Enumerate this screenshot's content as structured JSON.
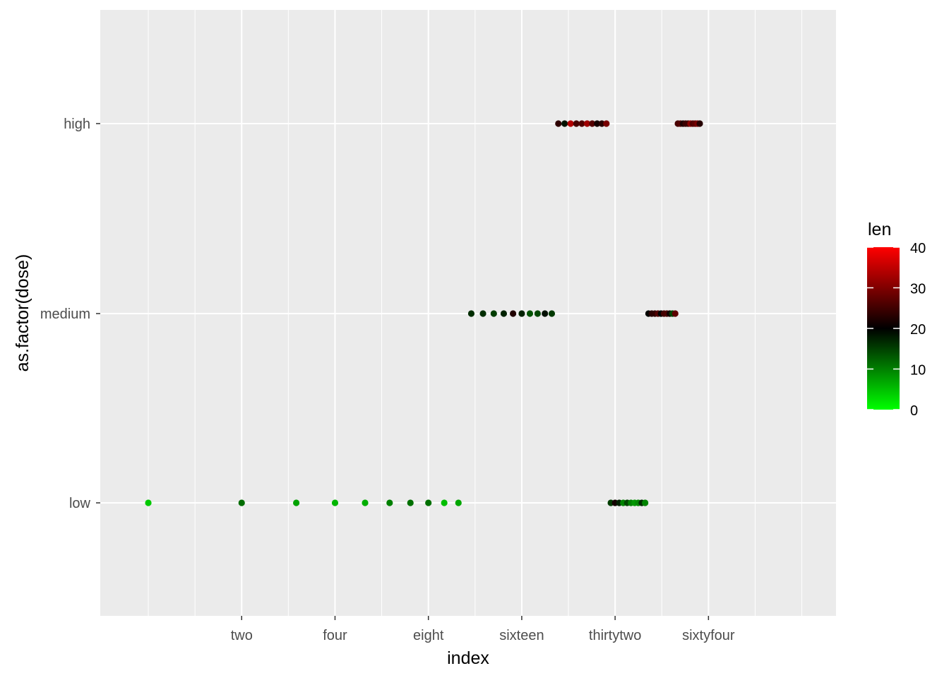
{
  "chart_data": {
    "type": "scatter",
    "xlabel": "index",
    "ylabel": "as.factor(dose)",
    "x_scale": "log2",
    "xlim": [
      0.7,
      165
    ],
    "x_ticks": [
      {
        "value": 2,
        "label": "two"
      },
      {
        "value": 4,
        "label": "four"
      },
      {
        "value": 8,
        "label": "eight"
      },
      {
        "value": 16,
        "label": "sixteen"
      },
      {
        "value": 32,
        "label": "thirtytwo"
      },
      {
        "value": 64,
        "label": "sixtyfour"
      }
    ],
    "y_categories": [
      "low",
      "medium",
      "high"
    ],
    "grid": true,
    "legend": {
      "title": "len",
      "position": "right",
      "min": 0,
      "max": 40,
      "ticks": [
        0,
        10,
        20,
        30,
        40
      ],
      "colors": {
        "low": "#00ff00",
        "mid": "#000000",
        "high": "#ff0000"
      },
      "midpoint": 20
    },
    "points": [
      {
        "x": 1,
        "y": "low",
        "len": 4.2
      },
      {
        "x": 2,
        "y": "low",
        "len": 11.5
      },
      {
        "x": 3,
        "y": "low",
        "len": 7.3
      },
      {
        "x": 4,
        "y": "low",
        "len": 5.8
      },
      {
        "x": 5,
        "y": "low",
        "len": 6.4
      },
      {
        "x": 6,
        "y": "low",
        "len": 10
      },
      {
        "x": 7,
        "y": "low",
        "len": 11.2
      },
      {
        "x": 8,
        "y": "low",
        "len": 11.2
      },
      {
        "x": 9,
        "y": "low",
        "len": 5.2
      },
      {
        "x": 10,
        "y": "low",
        "len": 7
      },
      {
        "x": 11,
        "y": "medium",
        "len": 16.5
      },
      {
        "x": 12,
        "y": "medium",
        "len": 16.5
      },
      {
        "x": 13,
        "y": "medium",
        "len": 15.2
      },
      {
        "x": 14,
        "y": "medium",
        "len": 17.3
      },
      {
        "x": 15,
        "y": "medium",
        "len": 22.5
      },
      {
        "x": 16,
        "y": "medium",
        "len": 17.3
      },
      {
        "x": 17,
        "y": "medium",
        "len": 13.6
      },
      {
        "x": 18,
        "y": "medium",
        "len": 14.5
      },
      {
        "x": 19,
        "y": "medium",
        "len": 18.8
      },
      {
        "x": 20,
        "y": "medium",
        "len": 15.5
      },
      {
        "x": 21,
        "y": "high",
        "len": 23.6
      },
      {
        "x": 22,
        "y": "high",
        "len": 18.5
      },
      {
        "x": 23,
        "y": "high",
        "len": 33.9
      },
      {
        "x": 24,
        "y": "high",
        "len": 25.5
      },
      {
        "x": 25,
        "y": "high",
        "len": 26.4
      },
      {
        "x": 26,
        "y": "high",
        "len": 32.5
      },
      {
        "x": 27,
        "y": "high",
        "len": 26.7
      },
      {
        "x": 28,
        "y": "high",
        "len": 21.5
      },
      {
        "x": 29,
        "y": "high",
        "len": 23.3
      },
      {
        "x": 30,
        "y": "high",
        "len": 29.5
      },
      {
        "x": 31,
        "y": "low",
        "len": 15.2
      },
      {
        "x": 32,
        "y": "low",
        "len": 21.5
      },
      {
        "x": 33,
        "y": "low",
        "len": 17.6
      },
      {
        "x": 34,
        "y": "low",
        "len": 9.7
      },
      {
        "x": 35,
        "y": "low",
        "len": 14.5
      },
      {
        "x": 36,
        "y": "low",
        "len": 10
      },
      {
        "x": 37,
        "y": "low",
        "len": 8.2
      },
      {
        "x": 38,
        "y": "low",
        "len": 9.4
      },
      {
        "x": 39,
        "y": "low",
        "len": 16.5
      },
      {
        "x": 40,
        "y": "low",
        "len": 9.7
      },
      {
        "x": 41,
        "y": "medium",
        "len": 19.7
      },
      {
        "x": 42,
        "y": "medium",
        "len": 23.3
      },
      {
        "x": 43,
        "y": "medium",
        "len": 23.6
      },
      {
        "x": 44,
        "y": "medium",
        "len": 26.4
      },
      {
        "x": 45,
        "y": "medium",
        "len": 20
      },
      {
        "x": 46,
        "y": "medium",
        "len": 25.2
      },
      {
        "x": 47,
        "y": "medium",
        "len": 25.8
      },
      {
        "x": 48,
        "y": "medium",
        "len": 21.2
      },
      {
        "x": 49,
        "y": "medium",
        "len": 14.5
      },
      {
        "x": 50,
        "y": "medium",
        "len": 27.3
      },
      {
        "x": 51,
        "y": "high",
        "len": 25.5
      },
      {
        "x": 52,
        "y": "high",
        "len": 26.4
      },
      {
        "x": 53,
        "y": "high",
        "len": 22.4
      },
      {
        "x": 54,
        "y": "high",
        "len": 24.5
      },
      {
        "x": 55,
        "y": "high",
        "len": 24.8
      },
      {
        "x": 56,
        "y": "high",
        "len": 30.9
      },
      {
        "x": 57,
        "y": "high",
        "len": 26.4
      },
      {
        "x": 58,
        "y": "high",
        "len": 27.3
      },
      {
        "x": 59,
        "y": "high",
        "len": 29.4
      },
      {
        "x": 60,
        "y": "high",
        "len": 23
      }
    ]
  }
}
